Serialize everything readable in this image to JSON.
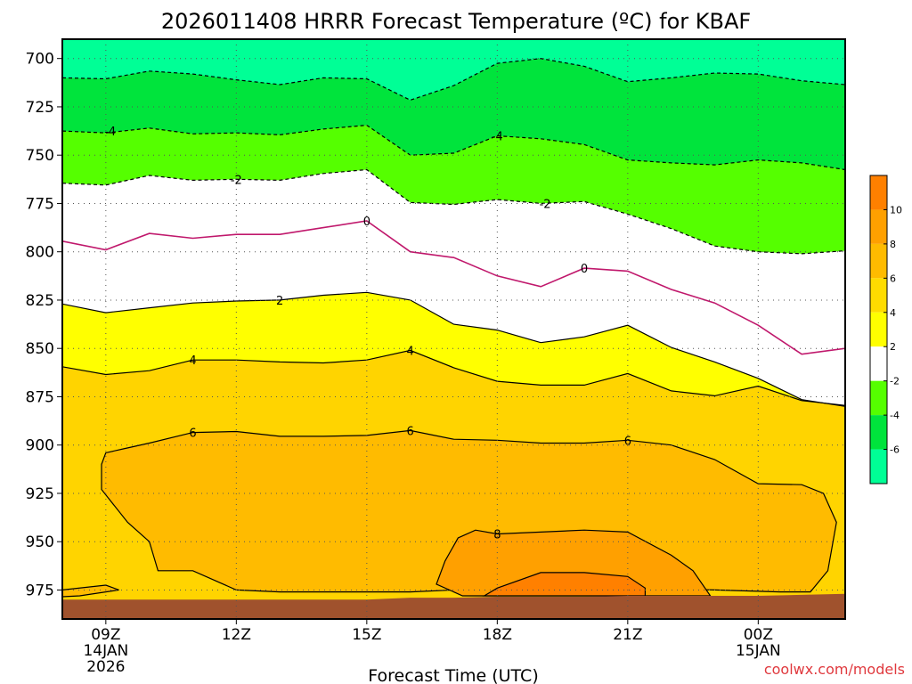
{
  "chart_data": {
    "type": "filled contour (time-pressure cross section)",
    "title": "2026011408 HRRR Forecast Temperature (ºC) for KBAF",
    "xlabel": "Forecast Time (UTC)",
    "watermark": "coolwx.com/models",
    "y_axis": {
      "label": "",
      "ticks": [
        700,
        725,
        750,
        775,
        800,
        825,
        850,
        875,
        900,
        925,
        950,
        975
      ],
      "range": [
        690,
        990
      ],
      "inverted": true
    },
    "x_axis": {
      "range_hours": [
        8,
        26
      ],
      "ticks": [
        {
          "hour": 9,
          "lines": [
            "09Z",
            "14JAN",
            "2026"
          ]
        },
        {
          "hour": 12,
          "lines": [
            "12Z"
          ]
        },
        {
          "hour": 15,
          "lines": [
            "15Z"
          ]
        },
        {
          "hour": 18,
          "lines": [
            "18Z"
          ]
        },
        {
          "hour": 21,
          "lines": [
            "21Z"
          ]
        },
        {
          "hour": 24,
          "lines": [
            "00Z",
            "15JAN"
          ]
        }
      ]
    },
    "grid": true,
    "contour_levels": [
      -6,
      -4,
      -2,
      2,
      4,
      6,
      8,
      10
    ],
    "colorbar": {
      "placement": "right",
      "tick_labels": [
        "10",
        "8",
        "6",
        "4",
        "2",
        "-2",
        "-4",
        "-6"
      ],
      "bins": [
        {
          "from": 10,
          "to": 12,
          "color": "#ff8000"
        },
        {
          "from": 8,
          "to": 10,
          "color": "#ffa000"
        },
        {
          "from": 6,
          "to": 8,
          "color": "#ffbb00"
        },
        {
          "from": 4,
          "to": 6,
          "color": "#ffdc00"
        },
        {
          "from": 2,
          "to": 4,
          "color": "#ffff00"
        },
        {
          "from": -2,
          "to": 2,
          "color": "#ffffff"
        },
        {
          "from": -4,
          "to": -2,
          "color": "#55ff00"
        },
        {
          "from": -6,
          "to": -4,
          "color": "#00e43c"
        },
        {
          "from": -8,
          "to": -6,
          "color": "#00ff96"
        }
      ]
    },
    "background_color": "#ffd400",
    "ground_color": "#a0522d",
    "bands": [
      {
        "level": 2,
        "fill": "#ffff00",
        "points": [
          [
            8,
            827
          ],
          [
            9,
            831.5
          ],
          [
            10,
            829
          ],
          [
            11,
            826.5
          ],
          [
            12,
            825.5
          ],
          [
            13,
            825
          ],
          [
            14,
            822.5
          ],
          [
            15,
            821
          ],
          [
            16,
            825
          ],
          [
            17,
            837.5
          ],
          [
            18,
            840.5
          ],
          [
            19,
            847
          ],
          [
            20,
            844
          ],
          [
            21,
            838
          ],
          [
            22,
            849.5
          ],
          [
            23,
            857
          ],
          [
            24,
            865.5
          ],
          [
            25,
            876.5
          ],
          [
            26,
            880
          ]
        ]
      },
      {
        "level": -2,
        "fill": "#ffffff",
        "points": [
          [
            8,
            764.5
          ],
          [
            9,
            765.5
          ],
          [
            10,
            760.5
          ],
          [
            11,
            763
          ],
          [
            12,
            762.5
          ],
          [
            13,
            763
          ],
          [
            14,
            759.5
          ],
          [
            15,
            757.5
          ],
          [
            16,
            774.5
          ],
          [
            17,
            775.5
          ],
          [
            18,
            773
          ],
          [
            19,
            775
          ],
          [
            20,
            774
          ],
          [
            21,
            780.5
          ],
          [
            22,
            788
          ],
          [
            23,
            797
          ],
          [
            24,
            800
          ],
          [
            25,
            801
          ],
          [
            26,
            799.5
          ]
        ]
      },
      {
        "level": -4,
        "fill": "#55ff00",
        "points": [
          [
            8,
            737.5
          ],
          [
            9,
            738.5
          ],
          [
            10,
            736
          ],
          [
            11,
            739
          ],
          [
            12,
            738.5
          ],
          [
            13,
            739.5
          ],
          [
            14,
            736.5
          ],
          [
            15,
            734.5
          ],
          [
            16,
            750
          ],
          [
            17,
            749
          ],
          [
            18,
            740
          ],
          [
            19,
            741.5
          ],
          [
            20,
            744.5
          ],
          [
            21,
            752.5
          ],
          [
            22,
            754
          ],
          [
            23,
            755
          ],
          [
            24,
            752.5
          ],
          [
            25,
            754
          ],
          [
            26,
            757.5
          ]
        ]
      },
      {
        "level": -6,
        "fill": "#00e43c",
        "points": [
          [
            8,
            710
          ],
          [
            9,
            710.5
          ],
          [
            10,
            706.5
          ],
          [
            11,
            708
          ],
          [
            12,
            711
          ],
          [
            13,
            713.5
          ],
          [
            14,
            710
          ],
          [
            15,
            710.5
          ],
          [
            16,
            721.5
          ],
          [
            17,
            714
          ],
          [
            18,
            702.5
          ],
          [
            19,
            700
          ],
          [
            20,
            704
          ],
          [
            21,
            712
          ],
          [
            22,
            710
          ],
          [
            23,
            707.5
          ],
          [
            24,
            708
          ],
          [
            25,
            711.5
          ],
          [
            26,
            713.5
          ]
        ]
      },
      {
        "level": 4,
        "fill": "#ffdc00",
        "points": [
          [
            8,
            859.5
          ],
          [
            9,
            863.5
          ],
          [
            10,
            861.5
          ],
          [
            11,
            856
          ],
          [
            12,
            856
          ],
          [
            13,
            857
          ],
          [
            14,
            857.5
          ],
          [
            15,
            856
          ],
          [
            16,
            851
          ],
          [
            17,
            860
          ],
          [
            18,
            867
          ],
          [
            19,
            869
          ],
          [
            20,
            869
          ],
          [
            21,
            863
          ],
          [
            22,
            872
          ],
          [
            23,
            874.5
          ],
          [
            24,
            869.5
          ],
          [
            25,
            877
          ],
          [
            26,
            879.5
          ]
        ]
      }
    ],
    "warm_regions": [
      {
        "level": 6,
        "fill": "#ffbb00",
        "points": [
          [
            9,
            904
          ],
          [
            9.4,
            902
          ],
          [
            10,
            899
          ],
          [
            11,
            893.5
          ],
          [
            12,
            893
          ],
          [
            13,
            895.5
          ],
          [
            14,
            895.5
          ],
          [
            15,
            895
          ],
          [
            16,
            892.5
          ],
          [
            17,
            897
          ],
          [
            18,
            897.5
          ],
          [
            19,
            899
          ],
          [
            20,
            899
          ],
          [
            21,
            897.5
          ],
          [
            22,
            900
          ],
          [
            23,
            907.5
          ],
          [
            24,
            920
          ],
          [
            25,
            920.5
          ],
          [
            25.5,
            925
          ],
          [
            25.8,
            940
          ],
          [
            25.6,
            965
          ],
          [
            25.2,
            976
          ],
          [
            24.5,
            976
          ],
          [
            23,
            975
          ],
          [
            22,
            974.5
          ],
          [
            21,
            975
          ],
          [
            20,
            975
          ],
          [
            19,
            975
          ],
          [
            18,
            975
          ],
          [
            17,
            975
          ],
          [
            16,
            976
          ],
          [
            15,
            976
          ],
          [
            14,
            976
          ],
          [
            13,
            976
          ],
          [
            12,
            975
          ],
          [
            11,
            965
          ],
          [
            10.2,
            965
          ],
          [
            10,
            950
          ],
          [
            9.5,
            940
          ],
          [
            8.9,
            923
          ],
          [
            8.9,
            910
          ]
        ]
      },
      {
        "level": 8,
        "fill": "#ffa000",
        "points": [
          [
            17.1,
            948
          ],
          [
            17.5,
            944
          ],
          [
            18,
            946
          ],
          [
            19,
            945
          ],
          [
            20,
            944
          ],
          [
            21,
            945
          ],
          [
            22,
            957
          ],
          [
            22.5,
            965
          ],
          [
            22.9,
            978
          ],
          [
            17.2,
            978
          ],
          [
            16.6,
            972
          ],
          [
            16.8,
            960
          ]
        ]
      },
      {
        "level": 10,
        "fill": "#ff8000",
        "points": [
          [
            17.7,
            978
          ],
          [
            18,
            974
          ],
          [
            19,
            966
          ],
          [
            20,
            966
          ],
          [
            21,
            968
          ],
          [
            21.4,
            974
          ],
          [
            21.4,
            978
          ]
        ]
      },
      {
        "level": 6,
        "fill": "#ffbb00",
        "points": [
          [
            8,
            975
          ],
          [
            9,
            972.5
          ],
          [
            9.3,
            975
          ],
          [
            8.4,
            978
          ],
          [
            8,
            978.5
          ]
        ]
      }
    ],
    "freezing_line": {
      "level": 0,
      "color": "#c0186c",
      "points": [
        [
          8,
          794.5
        ],
        [
          9,
          799
        ],
        [
          10,
          790.5
        ],
        [
          11,
          793
        ],
        [
          12,
          791
        ],
        [
          13,
          791
        ],
        [
          14,
          787.5
        ],
        [
          15,
          784
        ],
        [
          16,
          800
        ],
        [
          17,
          803
        ],
        [
          18,
          812.5
        ],
        [
          19,
          818
        ],
        [
          20,
          808.5
        ],
        [
          21,
          810
        ],
        [
          22,
          819.5
        ],
        [
          23,
          826.5
        ],
        [
          24,
          838
        ],
        [
          25,
          853
        ],
        [
          26,
          850
        ]
      ]
    },
    "contour_labels": [
      {
        "text": "-4",
        "x": 9.1,
        "y": 737.5
      },
      {
        "text": "-4",
        "x": 18,
        "y": 740
      },
      {
        "text": "-2",
        "x": 12,
        "y": 762.5
      },
      {
        "text": "-2",
        "x": 19.1,
        "y": 775
      },
      {
        "text": "0",
        "x": 15,
        "y": 784
      },
      {
        "text": "0",
        "x": 20,
        "y": 808.5
      },
      {
        "text": "2",
        "x": 13,
        "y": 825
      },
      {
        "text": "4",
        "x": 11,
        "y": 856
      },
      {
        "text": "4",
        "x": 16,
        "y": 851
      },
      {
        "text": "6",
        "x": 11,
        "y": 893.5
      },
      {
        "text": "6",
        "x": 16,
        "y": 892.5
      },
      {
        "text": "6",
        "x": 21,
        "y": 897.5
      },
      {
        "text": "8",
        "x": 18,
        "y": 946
      }
    ],
    "surface_pressure": {
      "points": [
        [
          8,
          980
        ],
        [
          15,
          980
        ],
        [
          16,
          979
        ],
        [
          17,
          979
        ],
        [
          18,
          978.5
        ],
        [
          19,
          978.5
        ],
        [
          20,
          978.5
        ],
        [
          21,
          978
        ],
        [
          22,
          978
        ],
        [
          23,
          978
        ],
        [
          24,
          978
        ],
        [
          25,
          977.5
        ],
        [
          26,
          977
        ]
      ]
    }
  }
}
